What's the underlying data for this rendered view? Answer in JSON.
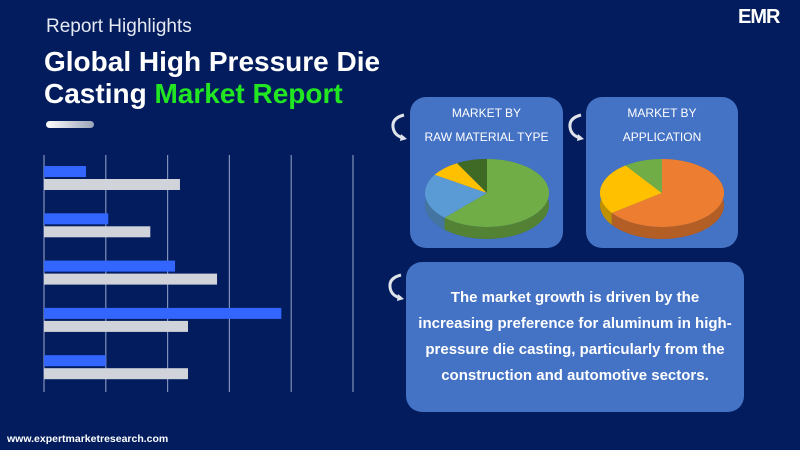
{
  "header": {
    "subtitle": "Report Highlights",
    "title_line1": "Global High Pressure Die",
    "title_line2_plain": "Casting ",
    "title_line2_highlight": "Market Report"
  },
  "logo": {
    "text": "EMR"
  },
  "cards": [
    {
      "line1": "MARKET BY",
      "line2": "RAW MATERIAL TYPE"
    },
    {
      "line1": "MARKET BY",
      "line2": "APPLICATION"
    }
  ],
  "highlight_text": "The market growth is driven by the increasing preference for aluminum in high-pressure die casting, particularly from the construction and automotive sectors.",
  "footer": {
    "url": "www.expertmarketresearch.com"
  },
  "colors": {
    "background": "#021c5e",
    "accent_green": "#22e622",
    "card": "#4472c4",
    "bar_blue": "#3366ff",
    "bar_gray": "#d0d3da"
  },
  "chart_data": [
    {
      "type": "bar",
      "orientation": "horizontal",
      "xlim": [
        0,
        5
      ],
      "grid": true,
      "series": [
        {
          "color": "#3366ff",
          "values": [
            0.68,
            1.04,
            2.12,
            3.84,
            1.0
          ]
        },
        {
          "color": "#d0d3da",
          "values": [
            2.2,
            1.72,
            2.8,
            2.33,
            2.33
          ]
        }
      ]
    },
    {
      "type": "pie",
      "values": [
        62,
        22,
        8,
        8
      ],
      "colors": [
        "#70ad47",
        "#5b9bd5",
        "#ffc000",
        "#3f6a26"
      ]
    },
    {
      "type": "pie",
      "values": [
        65,
        25,
        10
      ],
      "colors": [
        "#ed7d31",
        "#ffc000",
        "#70ad47"
      ]
    }
  ]
}
